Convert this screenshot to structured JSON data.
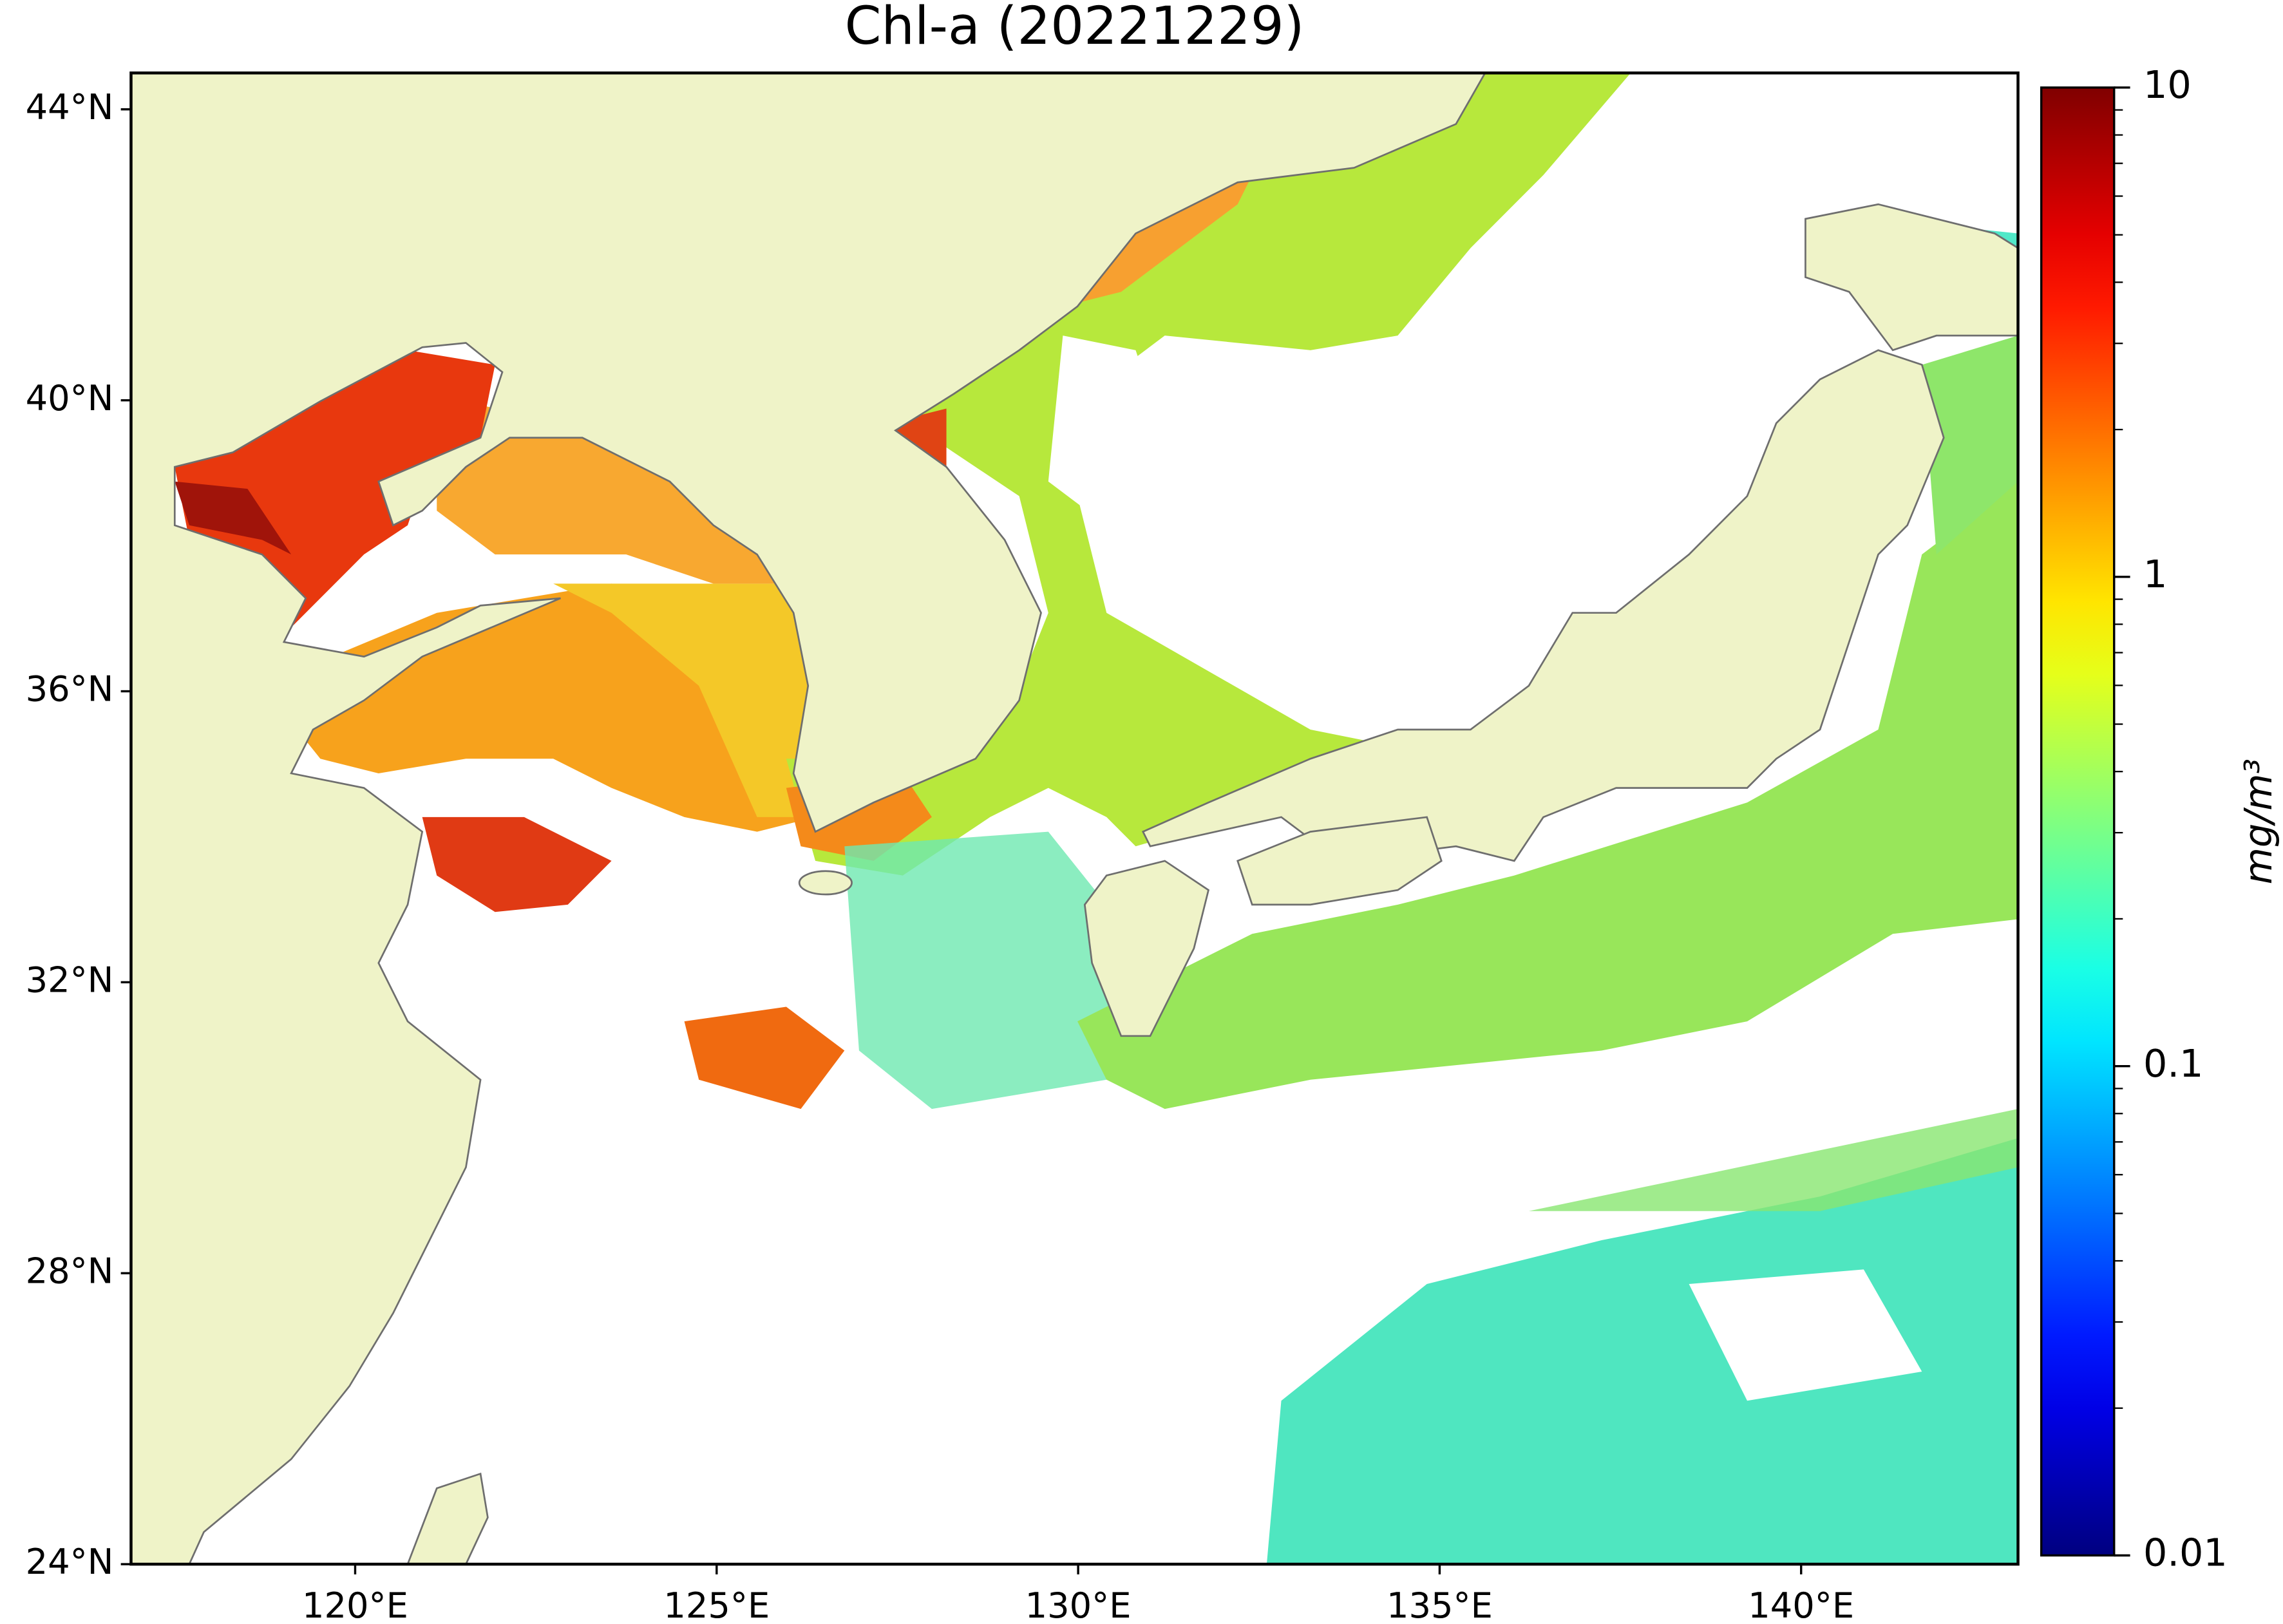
{
  "title": "Chl-a (20221229)",
  "map": {
    "xlim": [
      116.9,
      143.0
    ],
    "ylim": [
      24,
      44.5
    ],
    "xticks": [
      {
        "value": 120,
        "label": "120°E"
      },
      {
        "value": 125,
        "label": "125°E"
      },
      {
        "value": 130,
        "label": "130°E"
      },
      {
        "value": 135,
        "label": "135°E"
      },
      {
        "value": 140,
        "label": "140°E"
      }
    ],
    "yticks": [
      {
        "value": 24,
        "label": "24°N"
      },
      {
        "value": 28,
        "label": "28°N"
      },
      {
        "value": 32,
        "label": "32°N"
      },
      {
        "value": 36,
        "label": "36°N"
      },
      {
        "value": 40,
        "label": "40°N"
      },
      {
        "value": 44,
        "label": "44°N"
      }
    ]
  },
  "colorbar": {
    "label": "mg/m³",
    "scale": "log",
    "cmap": "jet",
    "lim": [
      0.01,
      10
    ],
    "ticks": [
      0.01,
      0.1,
      1,
      10
    ]
  }
}
